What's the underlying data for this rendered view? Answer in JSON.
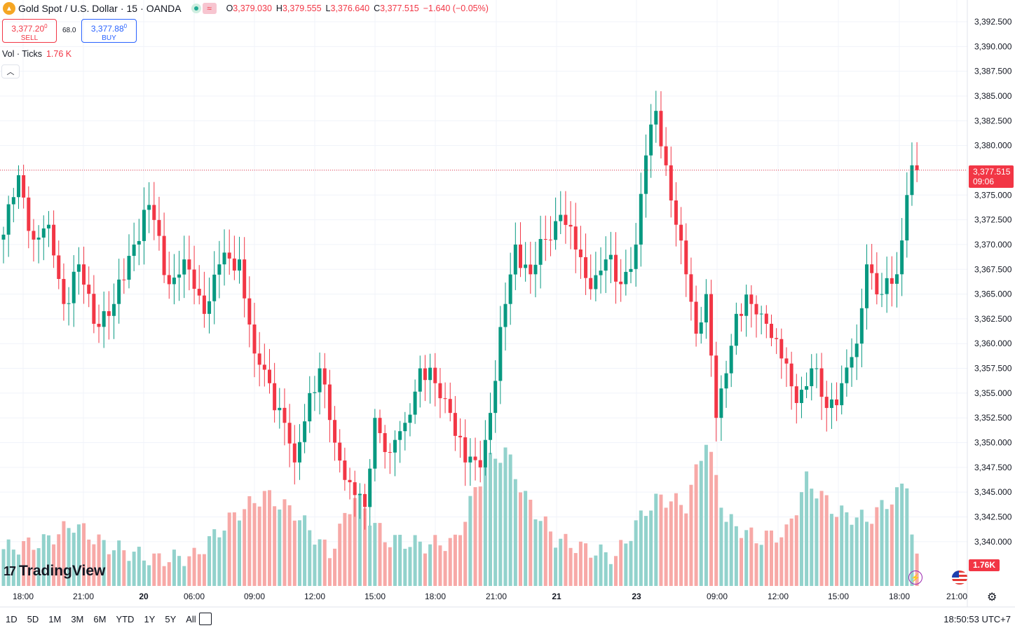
{
  "header": {
    "symbol": "Gold Spot",
    "quote": "U.S. Dollar",
    "interval": "15",
    "broker": "OANDA",
    "ohlc": {
      "o_label": "O",
      "o": "3,379.030",
      "h_label": "H",
      "h": "3,379.555",
      "l_label": "L",
      "l": "3,376.640",
      "c_label": "C",
      "c": "3,377.515",
      "change": "−1.640 (−0.05%)"
    }
  },
  "trade": {
    "sell_price": "3,377.20",
    "sell_sup": "0",
    "sell_label": "SELL",
    "spread": "68.0",
    "buy_price": "3,377.88",
    "buy_sup": "0",
    "buy_label": "BUY"
  },
  "volume_legend": {
    "label": "Vol · Ticks",
    "value": "1.76 K"
  },
  "last_price": {
    "value": "3,377.515",
    "countdown": "09:06"
  },
  "volume_tag": "1.76K",
  "brand": "TradingView",
  "ranges": [
    "1D",
    "5D",
    "1M",
    "3M",
    "6M",
    "YTD",
    "1Y",
    "5Y",
    "All"
  ],
  "footer_time": "18:50:53 UTC+7",
  "colors": {
    "up": "#089981",
    "down": "#f23645",
    "vol_up": "#92d2cc",
    "vol_down": "#f7a9a7"
  },
  "chart_data": {
    "type": "candlestick",
    "y_axis_ticks": [
      "3,392.500",
      "3,390.000",
      "3,387.500",
      "3,385.000",
      "3,382.500",
      "3,380.000",
      "3,377.500",
      "3,375.000",
      "3,372.500",
      "3,370.000",
      "3,367.500",
      "3,365.000",
      "3,362.500",
      "3,360.000",
      "3,357.500",
      "3,355.000",
      "3,352.500",
      "3,350.000",
      "3,347.500",
      "3,345.000",
      "3,342.500",
      "3,340.000"
    ],
    "x_axis_ticks": [
      "18:00",
      "21:00",
      "20",
      "06:00",
      "09:00",
      "12:00",
      "15:00",
      "18:00",
      "21:00",
      "21",
      "23",
      "09:00",
      "12:00",
      "15:00",
      "18:00",
      "21:00"
    ],
    "ylim": [
      3336,
      3394
    ],
    "current_price": 3377.515,
    "volume_series_name": "Vol · Ticks",
    "volume_last": 1760,
    "anchors": [
      [
        0,
        3371.0
      ],
      [
        3,
        3377.0
      ],
      [
        6,
        3370.5
      ],
      [
        9,
        3372.0
      ],
      [
        12,
        3364.0
      ],
      [
        15,
        3368.0
      ],
      [
        18,
        3362.0
      ],
      [
        22,
        3364.0
      ],
      [
        26,
        3370.0
      ],
      [
        29,
        3374.0
      ],
      [
        33,
        3366.0
      ],
      [
        36,
        3368.5
      ],
      [
        40,
        3363.0
      ],
      [
        43,
        3368.0
      ],
      [
        47,
        3368.5
      ],
      [
        50,
        3359.0
      ],
      [
        53,
        3356.0
      ],
      [
        56,
        3352.0
      ],
      [
        58,
        3348.0
      ],
      [
        61,
        3355.0
      ],
      [
        63,
        3357.5
      ],
      [
        66,
        3350.0
      ],
      [
        69,
        3346.0
      ],
      [
        72,
        3343.5
      ],
      [
        74,
        3352.5
      ],
      [
        77,
        3349.0
      ],
      [
        80,
        3352.0
      ],
      [
        83,
        3357.5
      ],
      [
        86,
        3356.0
      ],
      [
        89,
        3353.0
      ],
      [
        92,
        3348.0
      ],
      [
        95,
        3347.5
      ],
      [
        97,
        3353.0
      ],
      [
        100,
        3364.0
      ],
      [
        102,
        3370.0
      ],
      [
        105,
        3367.0
      ],
      [
        108,
        3370.5
      ],
      [
        111,
        3373.0
      ],
      [
        114,
        3369.5
      ],
      [
        117,
        3365.5
      ],
      [
        120,
        3368.5
      ],
      [
        123,
        3366.0
      ],
      [
        126,
        3370.0
      ],
      [
        128,
        3379.0
      ],
      [
        130,
        3383.5
      ],
      [
        132,
        3378.0
      ],
      [
        134,
        3372.0
      ],
      [
        136,
        3367.0
      ],
      [
        138,
        3361.0
      ],
      [
        140,
        3365.0
      ],
      [
        142,
        3352.5
      ],
      [
        144,
        3357.0
      ],
      [
        146,
        3363.0
      ],
      [
        149,
        3364.0
      ],
      [
        152,
        3362.0
      ],
      [
        155,
        3358.5
      ],
      [
        158,
        3354.0
      ],
      [
        161,
        3357.5
      ],
      [
        164,
        3353.5
      ],
      [
        167,
        3356.0
      ],
      [
        170,
        3360.0
      ],
      [
        172,
        3368.0
      ],
      [
        175,
        3365.0
      ],
      [
        178,
        3367.0
      ],
      [
        180,
        3375.0
      ],
      [
        181,
        3378.0
      ],
      [
        182,
        3377.515
      ]
    ],
    "volume_anchors": [
      [
        0,
        0.25
      ],
      [
        8,
        0.3
      ],
      [
        14,
        0.42
      ],
      [
        20,
        0.28
      ],
      [
        30,
        0.18
      ],
      [
        38,
        0.2
      ],
      [
        46,
        0.48
      ],
      [
        52,
        0.62
      ],
      [
        58,
        0.5
      ],
      [
        65,
        0.22
      ],
      [
        70,
        0.62
      ],
      [
        76,
        0.32
      ],
      [
        84,
        0.28
      ],
      [
        90,
        0.3
      ],
      [
        96,
        0.82
      ],
      [
        100,
        0.92
      ],
      [
        104,
        0.6
      ],
      [
        110,
        0.32
      ],
      [
        116,
        0.25
      ],
      [
        122,
        0.2
      ],
      [
        128,
        0.52
      ],
      [
        131,
        0.6
      ],
      [
        136,
        0.55
      ],
      [
        140,
        1.0
      ],
      [
        144,
        0.45
      ],
      [
        150,
        0.32
      ],
      [
        156,
        0.36
      ],
      [
        160,
        0.72
      ],
      [
        166,
        0.5
      ],
      [
        172,
        0.45
      ],
      [
        178,
        0.62
      ],
      [
        180,
        0.72
      ],
      [
        181,
        0.36
      ],
      [
        182,
        0.16
      ]
    ]
  }
}
